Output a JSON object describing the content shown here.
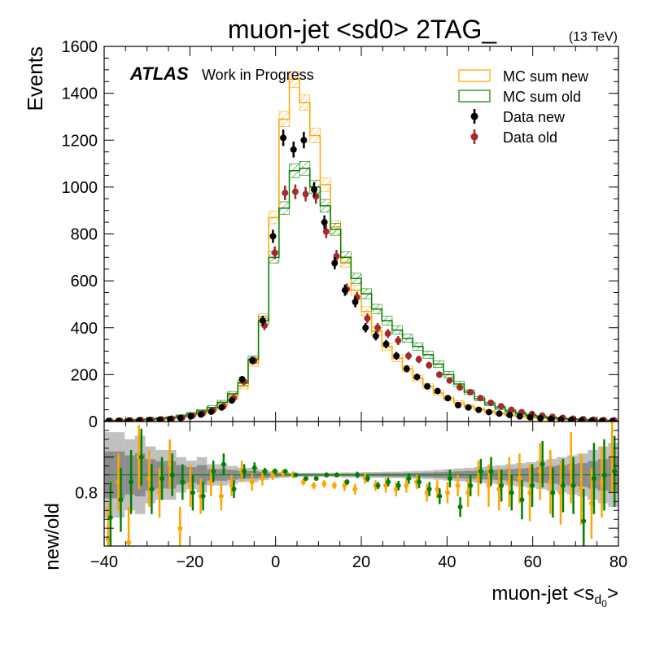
{
  "chart_data": [
    {
      "type": "line",
      "title": "muon-jet <sd0> 2TAG_",
      "energy_label": "(13 TeV)",
      "atlas_label": "ATLAS",
      "status_label": "Work in Progress",
      "ylabel": "Events",
      "xlim": [
        -40,
        80
      ],
      "ylim": [
        0,
        1600
      ],
      "x_ticks": [
        -40,
        -20,
        0,
        20,
        40,
        60,
        80
      ],
      "y_ticks": [
        0,
        200,
        400,
        600,
        800,
        1000,
        1200,
        1400,
        1600
      ],
      "legend_position": "top-right",
      "colors": {
        "mc_new": "#ffa500",
        "mc_old": "#008000",
        "data_new": "#000000",
        "data_old": "#a52a2a"
      },
      "bin_edges": [
        -40,
        -37.6,
        -35.2,
        -32.8,
        -30.4,
        -28,
        -25.6,
        -23.2,
        -20.8,
        -18.4,
        -16,
        -13.6,
        -11.2,
        -8.8,
        -6.4,
        -4,
        -1.6,
        0.8,
        3.2,
        5.6,
        8,
        10.4,
        12.8,
        15.2,
        17.6,
        20,
        22.4,
        24.8,
        27.2,
        29.6,
        32,
        34.4,
        36.8,
        39.2,
        41.6,
        44,
        46.4,
        48.8,
        51.2,
        53.6,
        56,
        58.4,
        60.8,
        63.2,
        65.6,
        68,
        70.4,
        72.8,
        75.2,
        77.6,
        80
      ],
      "series": [
        {
          "name": "MC sum new",
          "values": [
            3,
            4,
            5,
            6,
            8,
            11,
            14,
            20,
            28,
            38,
            52,
            72,
            105,
            150,
            250,
            440,
            870,
            1290,
            1460,
            1360,
            1220,
            1010,
            830,
            680,
            560,
            470,
            385,
            320,
            270,
            225,
            185,
            150,
            122,
            98,
            80,
            64,
            52,
            42,
            34,
            27,
            22,
            17,
            14,
            11,
            9,
            7,
            6,
            5,
            4,
            3
          ]
        },
        {
          "name": "MC sum old",
          "values": [
            4,
            5,
            6,
            8,
            10,
            13,
            17,
            24,
            33,
            45,
            60,
            82,
            118,
            165,
            265,
            430,
            700,
            910,
            1070,
            1080,
            1000,
            920,
            820,
            700,
            610,
            545,
            480,
            430,
            390,
            355,
            320,
            285,
            245,
            200,
            160,
            125,
            97,
            75,
            58,
            45,
            35,
            27,
            21,
            16,
            13,
            10,
            8,
            6,
            5,
            4
          ]
        },
        {
          "name": "Data new",
          "values": [
            2,
            3,
            4,
            5,
            6,
            8,
            10,
            15,
            22,
            30,
            42,
            60,
            90,
            180,
            260,
            430,
            790,
            1210,
            1160,
            1200,
            990,
            850,
            675,
            560,
            510,
            400,
            365,
            330,
            280,
            225,
            190,
            150,
            130,
            100,
            70,
            60,
            50,
            40,
            34,
            28,
            22,
            18,
            14,
            11,
            9,
            7,
            5,
            4,
            3,
            2
          ],
          "errors": [
            2,
            2,
            2,
            2,
            3,
            3,
            3,
            4,
            5,
            6,
            7,
            8,
            10,
            14,
            16,
            21,
            28,
            35,
            34,
            35,
            31,
            29,
            26,
            24,
            23,
            20,
            19,
            18,
            17,
            15,
            14,
            12,
            11,
            10,
            8,
            8,
            7,
            6,
            6,
            5,
            5,
            4,
            4,
            3,
            3,
            3,
            2,
            2,
            2,
            1
          ]
        },
        {
          "name": "Data old",
          "values": [
            3,
            3,
            4,
            6,
            7,
            9,
            12,
            17,
            25,
            35,
            48,
            65,
            100,
            170,
            260,
            410,
            720,
            975,
            980,
            970,
            960,
            810,
            705,
            565,
            530,
            440,
            400,
            375,
            345,
            280,
            265,
            240,
            200,
            175,
            145,
            125,
            100,
            80,
            65,
            50,
            40,
            32,
            25,
            20,
            16,
            12,
            10,
            8,
            6,
            5
          ],
          "errors": [
            2,
            2,
            2,
            2,
            3,
            3,
            3,
            4,
            5,
            6,
            7,
            8,
            10,
            13,
            16,
            20,
            27,
            31,
            31,
            31,
            31,
            28,
            27,
            24,
            23,
            21,
            20,
            19,
            19,
            17,
            16,
            15,
            14,
            13,
            12,
            11,
            10,
            9,
            8,
            7,
            6,
            6,
            5,
            4,
            4,
            3,
            3,
            3,
            2,
            2
          ]
        }
      ]
    },
    {
      "type": "scatter",
      "ylabel": "new/old",
      "xlabel": "muon-jet <s",
      "xlabel_sub": "d",
      "xlabel_subsub": "0",
      "xlabel_end": ">",
      "xlim": [
        -40,
        80
      ],
      "ylim": [
        0.65,
        1.0
      ],
      "y_ticks": [
        0.8
      ],
      "x_ticks": [
        -40,
        -20,
        0,
        20,
        40,
        60,
        80
      ],
      "reference_line": 0.85,
      "colors": {
        "data_ratio": "#ffa500",
        "mc_ratio": "#008000",
        "band_light": "#c0c0c0",
        "band_dark": "#8c8c8c"
      },
      "band_half_width": [
        0.12,
        0.12,
        0.1,
        0.11,
        0.08,
        0.07,
        0.07,
        0.05,
        0.04,
        0.05,
        0.03,
        0.03,
        0.025,
        0.02,
        0.02,
        0.015,
        0.01,
        0.008,
        0.006,
        0.006,
        0.006,
        0.006,
        0.006,
        0.007,
        0.007,
        0.008,
        0.008,
        0.009,
        0.009,
        0.01,
        0.011,
        0.012,
        0.014,
        0.016,
        0.018,
        0.02,
        0.022,
        0.024,
        0.027,
        0.03,
        0.033,
        0.036,
        0.04,
        0.045,
        0.05,
        0.055,
        0.06,
        0.07,
        0.08,
        0.09
      ],
      "series": [
        {
          "name": "Data new / Data old",
          "values": [
            0.67,
            0.83,
            0.66,
            0.9,
            0.84,
            0.8,
            0.88,
            0.7,
            0.82,
            0.79,
            0.83,
            0.79,
            0.82,
            0.86,
            0.83,
            0.84,
            0.85,
            0.855,
            0.85,
            0.83,
            0.82,
            0.825,
            0.82,
            0.82,
            0.81,
            0.84,
            0.82,
            0.82,
            0.81,
            0.82,
            0.83,
            0.8,
            0.81,
            0.8,
            0.82,
            0.8,
            0.84,
            0.82,
            0.81,
            0.83,
            0.84,
            0.8,
            0.86,
            0.83,
            0.8,
            0.87,
            0.81,
            0.77,
            0.83,
            0.9
          ],
          "errors": [
            0.1,
            0.08,
            0.1,
            0.09,
            0.08,
            0.07,
            0.07,
            0.06,
            0.06,
            0.05,
            0.04,
            0.04,
            0.03,
            0.03,
            0.025,
            0.02,
            0.015,
            0.01,
            0.01,
            0.01,
            0.01,
            0.01,
            0.01,
            0.015,
            0.015,
            0.015,
            0.015,
            0.02,
            0.02,
            0.02,
            0.02,
            0.025,
            0.025,
            0.03,
            0.03,
            0.04,
            0.05,
            0.06,
            0.06,
            0.07,
            0.07,
            0.08,
            0.08,
            0.09,
            0.09,
            0.1,
            0.1,
            0.1,
            0.1,
            0.1
          ]
        },
        {
          "name": "MC sum new / MC sum old",
          "values": [
            0.73,
            0.78,
            0.83,
            0.9,
            0.81,
            0.84,
            0.85,
            0.83,
            0.8,
            0.79,
            0.86,
            0.88,
            0.81,
            0.86,
            0.87,
            0.86,
            0.86,
            0.86,
            0.85,
            0.84,
            0.84,
            0.85,
            0.85,
            0.83,
            0.85,
            0.84,
            0.82,
            0.83,
            0.82,
            0.84,
            0.83,
            0.81,
            0.79,
            0.84,
            0.76,
            0.82,
            0.86,
            0.86,
            0.82,
            0.8,
            0.78,
            0.82,
            0.88,
            0.8,
            0.82,
            0.82,
            0.72,
            0.84,
            0.85,
            0.86
          ],
          "errors": [
            0.1,
            0.09,
            0.09,
            0.08,
            0.07,
            0.06,
            0.06,
            0.05,
            0.05,
            0.04,
            0.03,
            0.03,
            0.025,
            0.02,
            0.015,
            0.01,
            0.008,
            0.006,
            0.006,
            0.006,
            0.006,
            0.007,
            0.007,
            0.008,
            0.009,
            0.01,
            0.01,
            0.012,
            0.013,
            0.015,
            0.017,
            0.02,
            0.022,
            0.025,
            0.028,
            0.03,
            0.035,
            0.04,
            0.045,
            0.05,
            0.055,
            0.06,
            0.065,
            0.07,
            0.075,
            0.08,
            0.09,
            0.1,
            0.1,
            0.1
          ]
        }
      ]
    }
  ]
}
